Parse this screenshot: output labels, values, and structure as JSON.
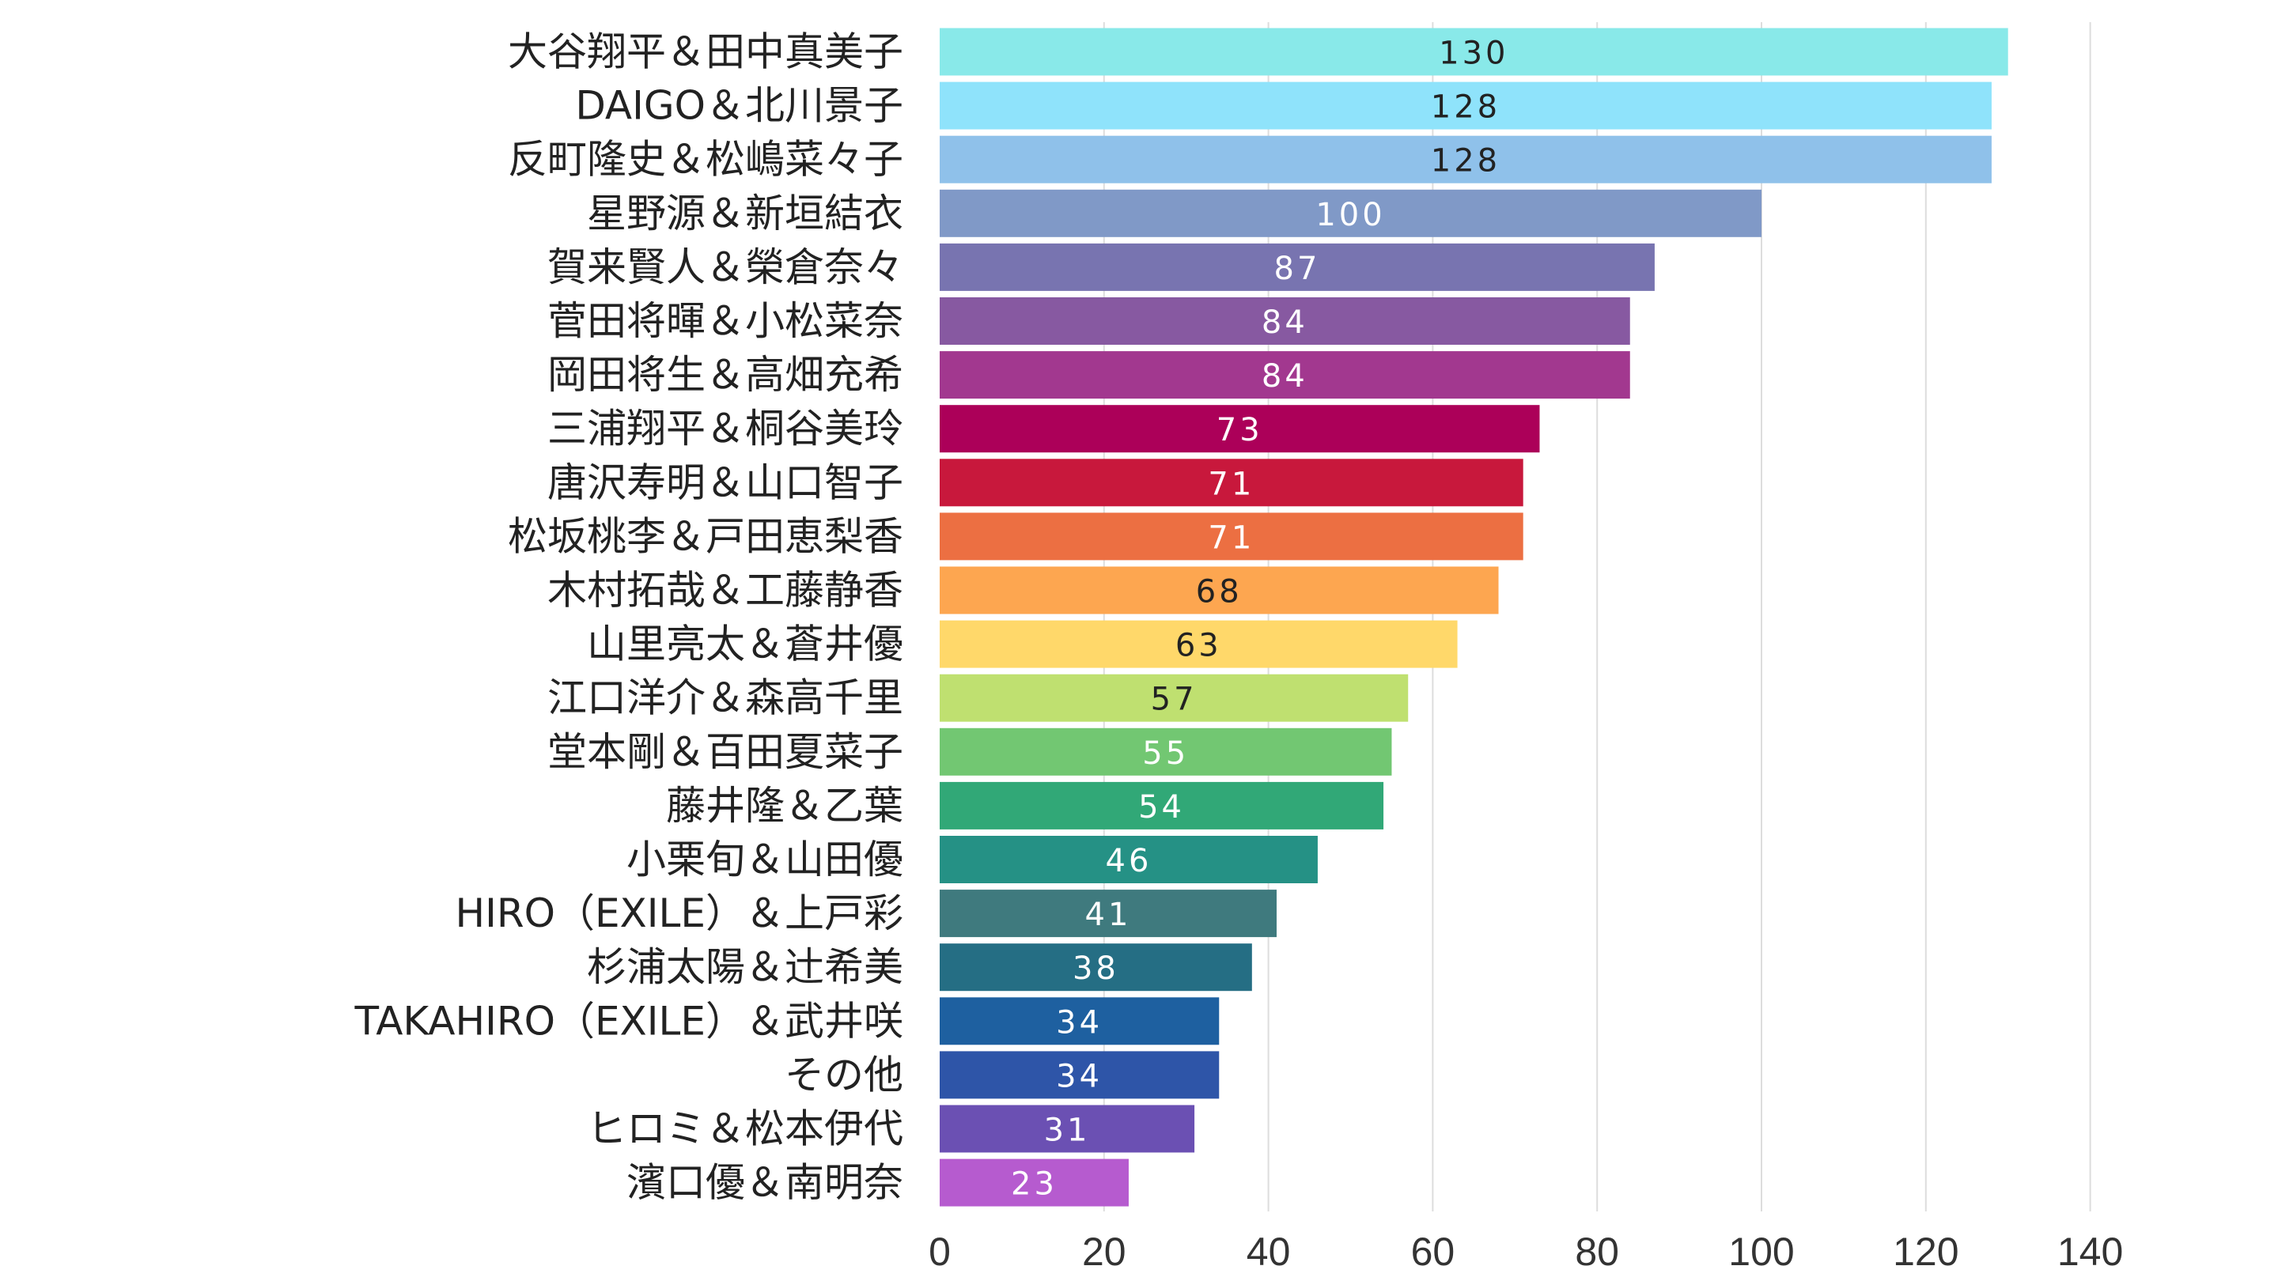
{
  "chart_data": {
    "type": "bar",
    "orientation": "horizontal",
    "title": "",
    "xlabel": "",
    "ylabel": "",
    "xlim": [
      0,
      140
    ],
    "xticks": [
      0,
      20,
      40,
      60,
      80,
      100,
      120,
      140
    ],
    "grid": "vertical",
    "legend": "none",
    "categories": [
      "大谷翔平＆田中真美子",
      "DAIGO＆北川景子",
      "反町隆史＆松嶋菜々子",
      "星野源＆新垣結衣",
      "賀来賢人＆榮倉奈々",
      "菅田将暉＆小松菜奈",
      "岡田将生＆高畑充希",
      "三浦翔平＆桐谷美玲",
      "唐沢寿明＆山口智子",
      "松坂桃李＆戸田恵梨香",
      "木村拓哉＆工藤静香",
      "山里亮太＆蒼井優",
      "江口洋介＆森高千里",
      "堂本剛＆百田夏菜子",
      "藤井隆＆乙葉",
      "小栗旬＆山田優",
      "HIRO（EXILE）＆上戸彩",
      "杉浦太陽＆辻希美",
      "TAKAHIRO（EXILE）＆武井咲",
      "その他",
      "ヒロミ＆松本伊代",
      "濱口優＆南明奈"
    ],
    "values": [
      130,
      128,
      128,
      100,
      87,
      84,
      84,
      73,
      71,
      71,
      68,
      63,
      57,
      55,
      54,
      46,
      41,
      38,
      34,
      34,
      31,
      23
    ],
    "colors": [
      "#89E9E9",
      "#8FE3FB",
      "#8FC1EA",
      "#8099C7",
      "#7874B0",
      "#8759A1",
      "#A2388F",
      "#AC0059",
      "#C8183C",
      "#EC6F42",
      "#FDA650",
      "#FFD86A",
      "#BFE070",
      "#72C772",
      "#31A877",
      "#259185",
      "#3F7A7E",
      "#256E84",
      "#1E60A0",
      "#2E55A8",
      "#6B50B3",
      "#B65BCF"
    ],
    "label_colors": [
      "#222222",
      "#222222",
      "#222222",
      "#ffffff",
      "#ffffff",
      "#ffffff",
      "#ffffff",
      "#ffffff",
      "#ffffff",
      "#ffffff",
      "#222222",
      "#222222",
      "#222222",
      "#ffffff",
      "#ffffff",
      "#ffffff",
      "#ffffff",
      "#ffffff",
      "#ffffff",
      "#ffffff",
      "#ffffff",
      "#ffffff"
    ]
  }
}
